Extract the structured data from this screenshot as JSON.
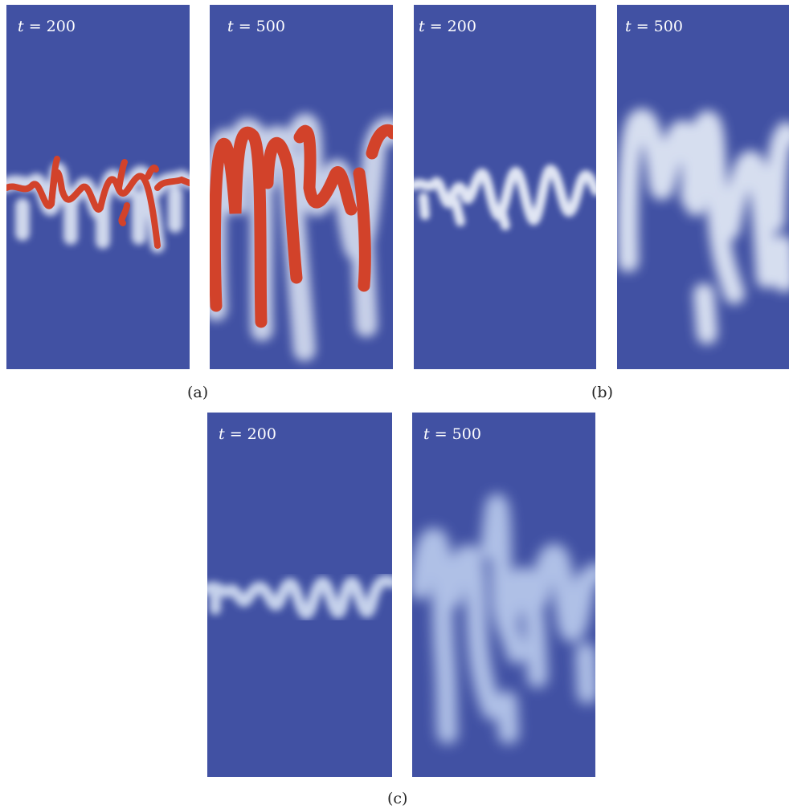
{
  "figure": {
    "background_color": "#4151a3",
    "subfigures": [
      {
        "label": "(a)",
        "panels": [
          {
            "time_var": "t",
            "time_text": "= 200",
            "finger_color": "#d2422a",
            "halo_color": "#dfe6f4"
          },
          {
            "time_var": "t",
            "time_text": "= 500",
            "finger_color": "#d2422a",
            "halo_color": "#dfe6f4"
          }
        ]
      },
      {
        "label": "(b)",
        "panels": [
          {
            "time_var": "t",
            "time_text": "= 200",
            "finger_color": "#e9eef8"
          },
          {
            "time_var": "t",
            "time_text": "= 500",
            "finger_color": "#dfe6f4"
          }
        ]
      },
      {
        "label": "(c)",
        "panels": [
          {
            "time_var": "t",
            "time_text": "= 200",
            "finger_color": "#cdd9f0"
          },
          {
            "time_var": "t",
            "time_text": "= 500",
            "finger_color": "#b5c6ea"
          }
        ]
      }
    ]
  }
}
